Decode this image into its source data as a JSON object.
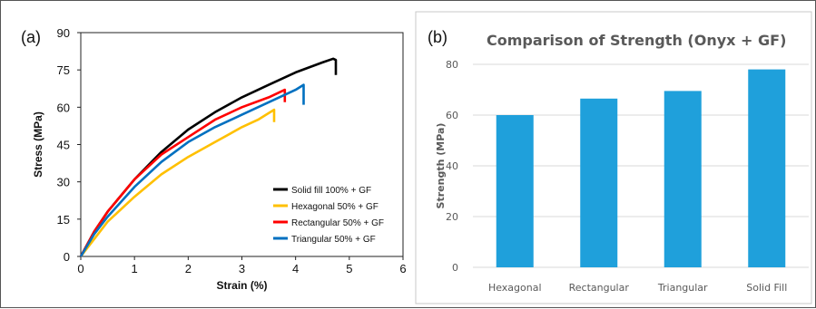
{
  "chart_data": [
    {
      "panel_label": "(a)",
      "type": "line",
      "title": "",
      "xlabel": "Strain (%)",
      "ylabel": "Stress (MPa)",
      "xlim": [
        0,
        6
      ],
      "ylim": [
        0,
        90
      ],
      "xticks": [
        "0",
        "1",
        "2",
        "3",
        "4",
        "5",
        "6"
      ],
      "yticks": [
        "0",
        "15",
        "30",
        "45",
        "60",
        "75",
        "90"
      ],
      "legend_position": "bottom-right",
      "series": [
        {
          "name": "Solid fill 100% + GF",
          "color": "#000000",
          "x": [
            0,
            0.25,
            0.5,
            1,
            1.5,
            2,
            2.5,
            3,
            3.5,
            4,
            4.5,
            4.7,
            4.75,
            4.75
          ],
          "y": [
            0,
            10,
            18,
            31,
            42,
            51,
            58,
            64,
            69,
            74,
            78,
            79.5,
            79,
            73
          ]
        },
        {
          "name": "Hexagonal 50% + GF",
          "color": "#FFC000",
          "x": [
            0,
            0.25,
            0.5,
            1,
            1.5,
            2,
            2.5,
            3,
            3.3,
            3.6,
            3.6
          ],
          "y": [
            0,
            7,
            14,
            24,
            33,
            40,
            46,
            52,
            55,
            59,
            54
          ]
        },
        {
          "name": "Rectangular 50% + GF",
          "color": "#FF0000",
          "x": [
            0,
            0.25,
            0.5,
            1,
            1.5,
            2,
            2.5,
            3,
            3.5,
            3.8,
            3.8
          ],
          "y": [
            0,
            10,
            18,
            31,
            41,
            48,
            55,
            60,
            64,
            67,
            62
          ]
        },
        {
          "name": "Triangular 50% + GF",
          "color": "#0070C0",
          "x": [
            0,
            0.25,
            0.5,
            1,
            1.5,
            2,
            2.5,
            3,
            3.5,
            4,
            4.15,
            4.15
          ],
          "y": [
            0,
            9,
            16,
            28,
            38,
            46,
            52,
            57,
            62,
            67,
            69,
            61
          ]
        }
      ]
    },
    {
      "panel_label": "(b)",
      "type": "bar",
      "title": "Comparison of Strength (Onyx + GF)",
      "xlabel": "",
      "ylabel": "Strength (MPa)",
      "ylim": [
        0,
        80
      ],
      "yticks": [
        "0",
        "20",
        "40",
        "60",
        "80"
      ],
      "grid": true,
      "color": "#1FA0DB",
      "categories": [
        "Hexagonal",
        "Rectangular",
        "Triangular",
        "Solid Fill"
      ],
      "values": [
        60,
        66.5,
        69.5,
        78
      ]
    }
  ]
}
